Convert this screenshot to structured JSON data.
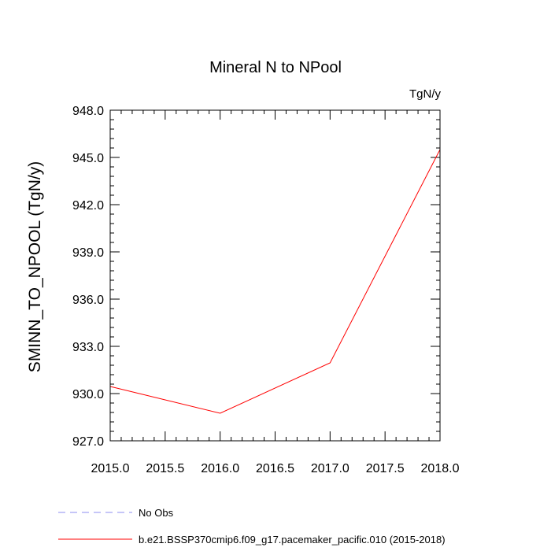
{
  "chart_data": {
    "type": "line",
    "title": "Mineral N to NPool",
    "units_label": "TgN/y",
    "ylabel": "SMINN_TO_NPOOL  (TgN/y)",
    "xlabel": "",
    "xlim": [
      2015.0,
      2018.0
    ],
    "ylim": [
      927.0,
      948.0
    ],
    "x_ticks": [
      "2015.0",
      "2015.5",
      "2016.0",
      "2016.5",
      "2017.0",
      "2017.5",
      "2018.0"
    ],
    "y_ticks": [
      "927.0",
      "930.0",
      "933.0",
      "936.0",
      "939.0",
      "942.0",
      "945.0",
      "948.0"
    ],
    "grid": false,
    "series": [
      {
        "name": "b.e21.BSSP370cmip6.f09_g17.pacemaker_pacific.010 (2015-2018)",
        "color": "#ff0000",
        "style": "solid",
        "x": [
          2015,
          2016,
          2017,
          2018
        ],
        "y": [
          930.45,
          928.75,
          931.95,
          945.5
        ]
      }
    ],
    "legend": {
      "placement": "bottom-left",
      "entries": [
        {
          "label": "No Obs",
          "color": "#8c8cf0",
          "style": "dashed"
        },
        {
          "label": "b.e21.BSSP370cmip6.f09_g17.pacemaker_pacific.010 (2015-2018)",
          "color": "#ff0000",
          "style": "solid"
        }
      ]
    }
  }
}
